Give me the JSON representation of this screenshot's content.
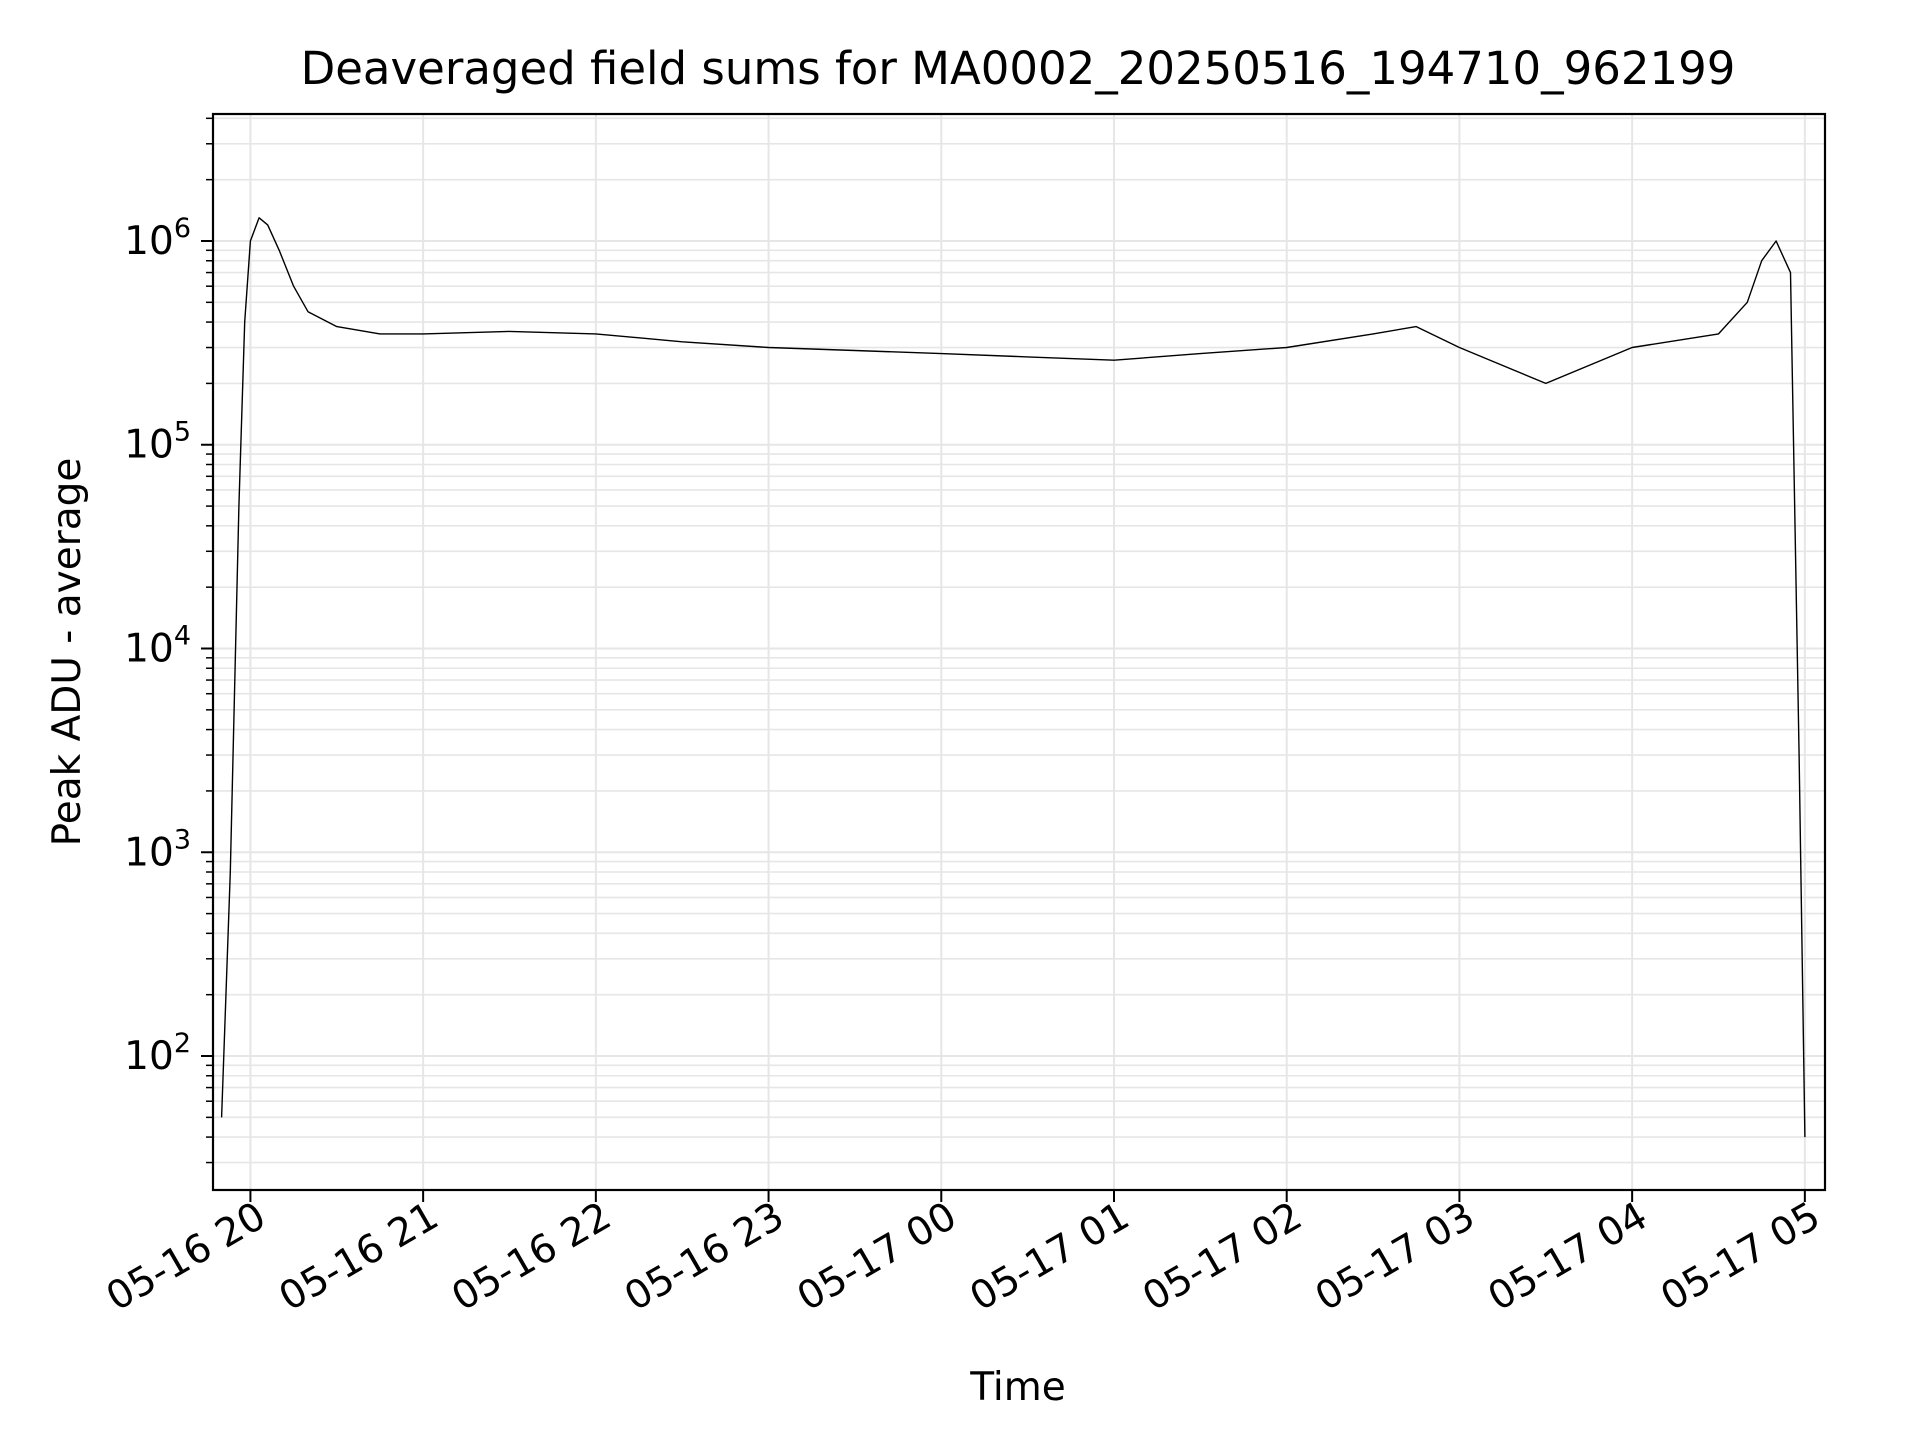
{
  "chart_data": {
    "type": "line",
    "title": "Deaveraged field sums for MA0002_20250516_194710_962199",
    "xlabel": "Time",
    "ylabel": "Peak ADU - average",
    "yscale": "log",
    "ylim": [
      22,
      4200000
    ],
    "xlim": [
      "2025-05-16 19:47",
      "2025-05-17 05:07"
    ],
    "grid": true,
    "line_color": "#000000",
    "grid_color": "#e6e6e6",
    "x_ticks": [
      {
        "value": "2025-05-16 20:00",
        "label": "05-16 20"
      },
      {
        "value": "2025-05-16 21:00",
        "label": "05-16 21"
      },
      {
        "value": "2025-05-16 22:00",
        "label": "05-16 22"
      },
      {
        "value": "2025-05-16 23:00",
        "label": "05-16 23"
      },
      {
        "value": "2025-05-17 00:00",
        "label": "05-17 00"
      },
      {
        "value": "2025-05-17 01:00",
        "label": "05-17 01"
      },
      {
        "value": "2025-05-17 02:00",
        "label": "05-17 02"
      },
      {
        "value": "2025-05-17 03:00",
        "label": "05-17 03"
      },
      {
        "value": "2025-05-17 04:00",
        "label": "05-17 04"
      },
      {
        "value": "2025-05-17 05:00",
        "label": "05-17 05"
      }
    ],
    "y_ticks": [
      {
        "value": 100,
        "base": "10",
        "exp": "2"
      },
      {
        "value": 1000,
        "base": "10",
        "exp": "3"
      },
      {
        "value": 10000,
        "base": "10",
        "exp": "4"
      },
      {
        "value": 100000,
        "base": "10",
        "exp": "5"
      },
      {
        "value": 1000000,
        "base": "10",
        "exp": "6"
      }
    ],
    "series": [
      {
        "x": [
          "2025-05-16 19:50",
          "2025-05-16 19:53",
          "2025-05-16 19:56",
          "2025-05-16 19:58",
          "2025-05-16 20:00",
          "2025-05-16 20:03",
          "2025-05-16 20:06",
          "2025-05-16 20:10",
          "2025-05-16 20:15",
          "2025-05-16 20:20",
          "2025-05-16 20:30",
          "2025-05-16 20:45",
          "2025-05-16 21:00",
          "2025-05-16 21:30",
          "2025-05-16 22:00",
          "2025-05-16 22:30",
          "2025-05-16 23:00",
          "2025-05-16 23:30",
          "2025-05-17 00:00",
          "2025-05-17 00:30",
          "2025-05-17 01:00",
          "2025-05-17 01:30",
          "2025-05-17 02:00",
          "2025-05-17 02:30",
          "2025-05-17 02:45",
          "2025-05-17 03:00",
          "2025-05-17 03:30",
          "2025-05-17 04:00",
          "2025-05-17 04:30",
          "2025-05-17 04:40",
          "2025-05-17 04:45",
          "2025-05-17 04:50",
          "2025-05-17 04:55",
          "2025-05-17 04:58",
          "2025-05-17 05:00"
        ],
        "y": [
          50,
          800,
          50000,
          400000,
          1000000,
          1300000,
          1200000,
          900000,
          600000,
          450000,
          380000,
          350000,
          350000,
          360000,
          350000,
          320000,
          300000,
          290000,
          280000,
          270000,
          260000,
          280000,
          300000,
          350000,
          380000,
          300000,
          200000,
          300000,
          350000,
          500000,
          800000,
          1000000,
          700000,
          3000,
          40
        ]
      }
    ]
  }
}
